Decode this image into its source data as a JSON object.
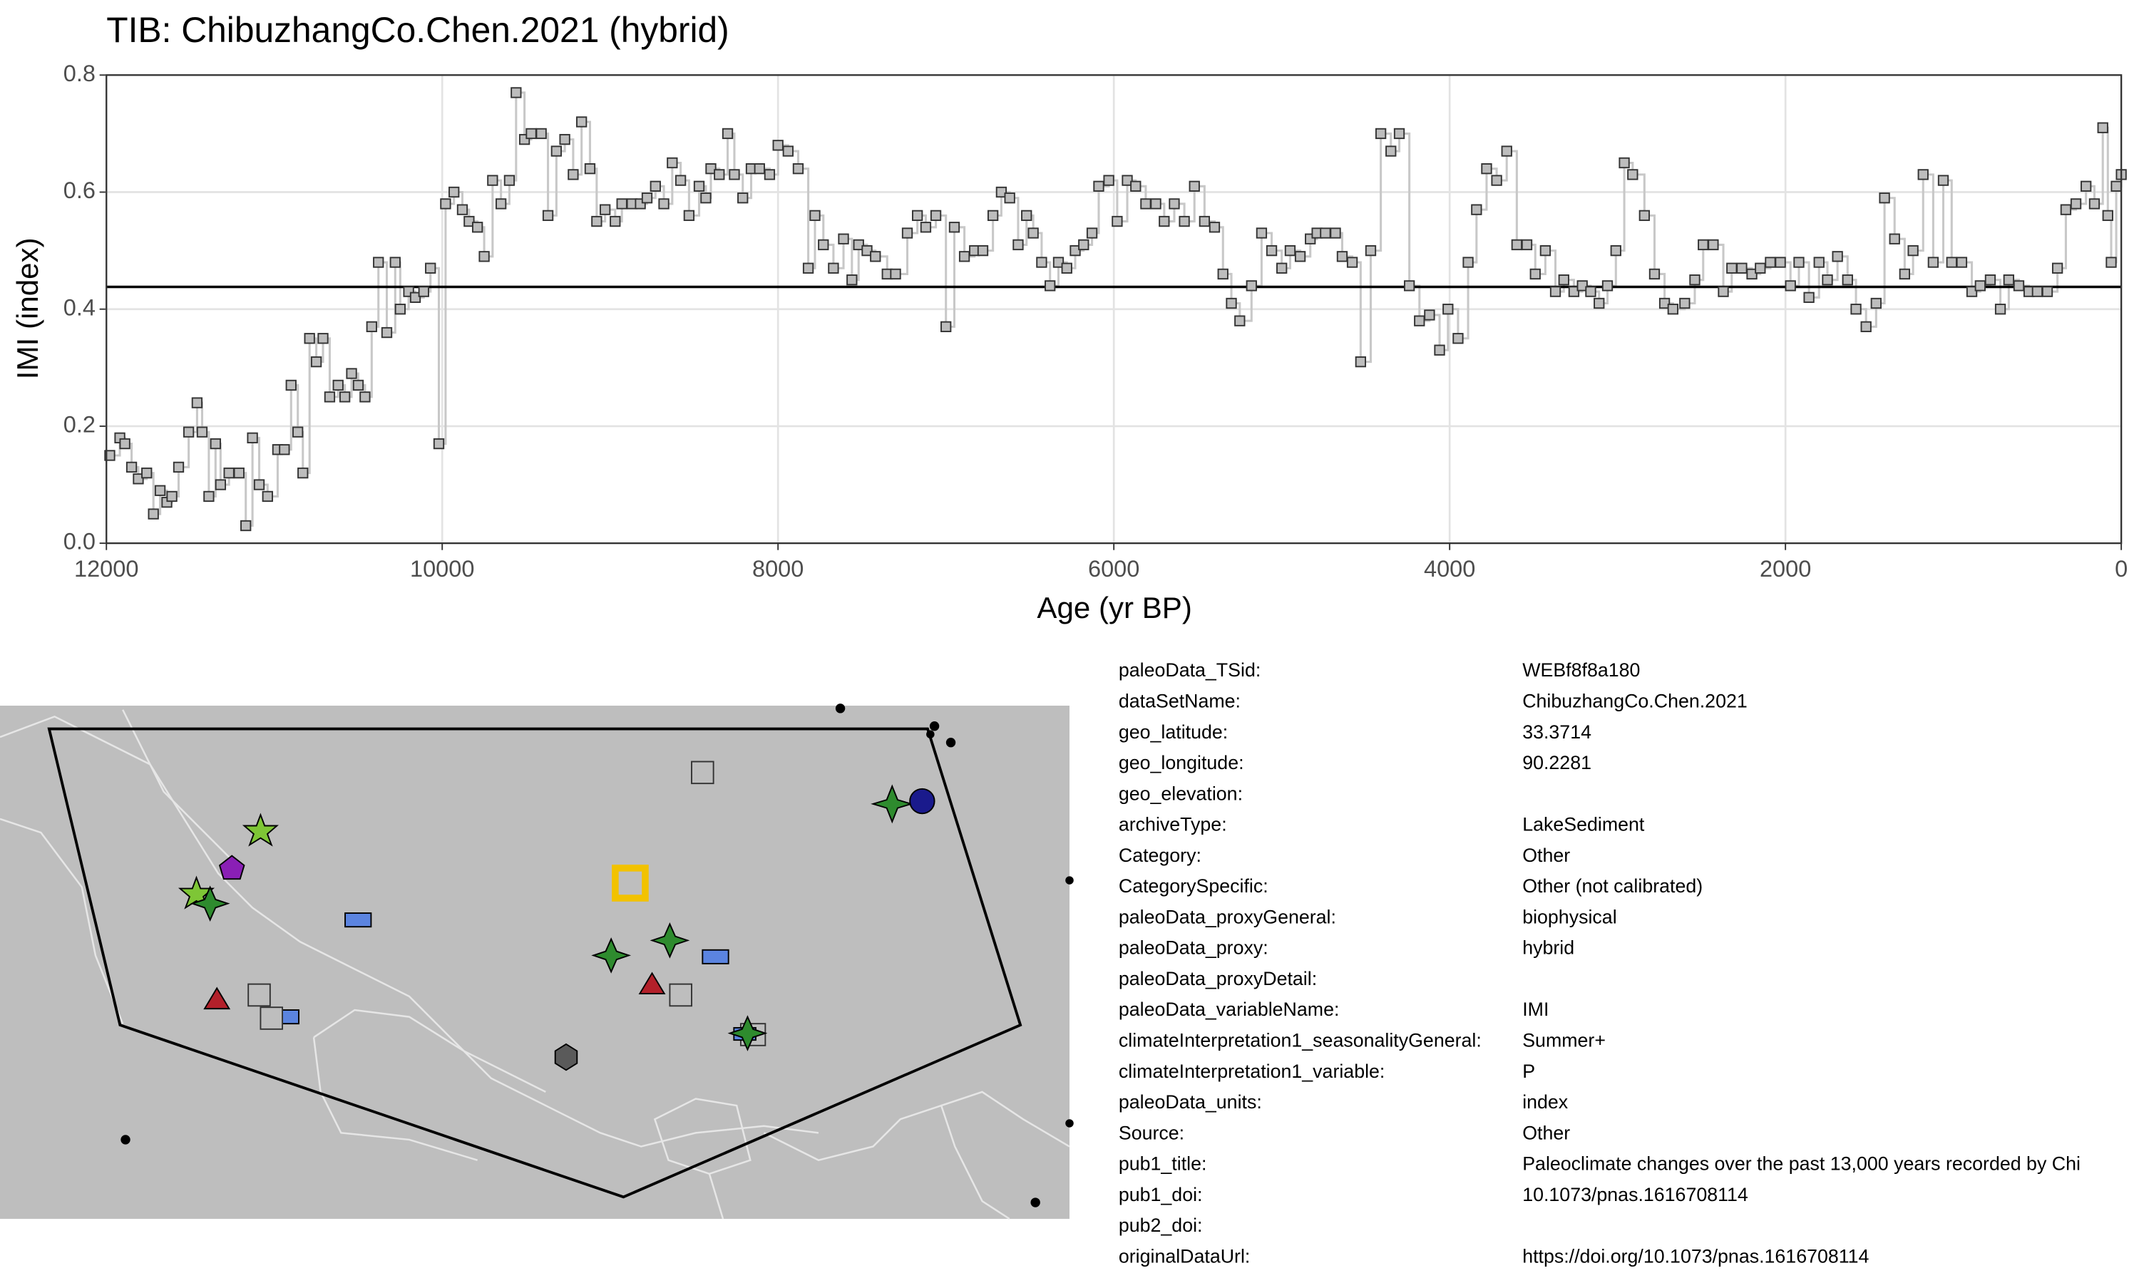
{
  "chart_data": {
    "type": "step",
    "title": "TIB: ChibuzhangCo.Chen.2021 (hybrid)",
    "x_label": "Age (yr BP)",
    "y_label": "IMI (index)",
    "xlim": [
      12000,
      0
    ],
    "xticks": [
      12000,
      10000,
      8000,
      6000,
      4000,
      2000,
      0
    ],
    "ylim": [
      0,
      0.8
    ],
    "yticks": [
      {
        "value": 0,
        "label": "0.0"
      },
      {
        "value": 0.2,
        "label": "0.2"
      },
      {
        "value": 0.4,
        "label": "0.4"
      },
      {
        "value": 0.6,
        "label": "0.6"
      },
      {
        "value": 0.8,
        "label": "0.8"
      }
    ],
    "grid": true,
    "mean_line": 0.438,
    "line_color": "#c8c8c8",
    "marker_color": "#bdbdbd",
    "x": [
      11980,
      11920,
      11890,
      11850,
      11810,
      11760,
      11720,
      11680,
      11640,
      11610,
      11570,
      11510,
      11460,
      11430,
      11390,
      11350,
      11320,
      11270,
      11210,
      11170,
      11130,
      11090,
      11040,
      10980,
      10940,
      10900,
      10860,
      10830,
      10790,
      10750,
      10710,
      10670,
      10620,
      10580,
      10540,
      10500,
      10460,
      10420,
      10380,
      10330,
      10280,
      10250,
      10200,
      10160,
      10110,
      10070,
      10020,
      9980,
      9930,
      9880,
      9840,
      9790,
      9750,
      9700,
      9650,
      9600,
      9560,
      9510,
      9470,
      9410,
      9370,
      9320,
      9270,
      9220,
      9170,
      9120,
      9080,
      9030,
      8970,
      8930,
      8870,
      8820,
      8780,
      8730,
      8680,
      8630,
      8580,
      8530,
      8470,
      8430,
      8400,
      8350,
      8300,
      8260,
      8210,
      8160,
      8110,
      8050,
      8000,
      7940,
      7880,
      7820,
      7780,
      7730,
      7670,
      7610,
      7560,
      7520,
      7470,
      7420,
      7350,
      7300,
      7230,
      7170,
      7120,
      7060,
      7000,
      6950,
      6890,
      6830,
      6780,
      6720,
      6670,
      6620,
      6570,
      6520,
      6480,
      6430,
      6380,
      6330,
      6280,
      6230,
      6180,
      6130,
      6090,
      6030,
      5980,
      5920,
      5870,
      5810,
      5750,
      5700,
      5640,
      5580,
      5520,
      5460,
      5400,
      5350,
      5300,
      5250,
      5180,
      5120,
      5060,
      5000,
      4950,
      4890,
      4830,
      4790,
      4740,
      4680,
      4640,
      4580,
      4530,
      4470,
      4410,
      4350,
      4300,
      4240,
      4180,
      4120,
      4060,
      4010,
      3950,
      3890,
      3840,
      3780,
      3720,
      3660,
      3600,
      3540,
      3490,
      3430,
      3370,
      3320,
      3260,
      3210,
      3160,
      3110,
      3060,
      3010,
      2960,
      2910,
      2840,
      2780,
      2720,
      2670,
      2600,
      2540,
      2490,
      2430,
      2370,
      2320,
      2260,
      2200,
      2150,
      2090,
      2030,
      1970,
      1920,
      1860,
      1800,
      1750,
      1690,
      1630,
      1580,
      1520,
      1460,
      1410,
      1350,
      1290,
      1240,
      1180,
      1120,
      1060,
      1010,
      950,
      890,
      840,
      780,
      720,
      670,
      610,
      550,
      500,
      440,
      380,
      330,
      270,
      210,
      160,
      110,
      80,
      60,
      30,
      0
    ],
    "values": [
      0.15,
      0.18,
      0.17,
      0.13,
      0.11,
      0.12,
      0.05,
      0.09,
      0.07,
      0.08,
      0.13,
      0.19,
      0.24,
      0.19,
      0.08,
      0.17,
      0.1,
      0.12,
      0.12,
      0.03,
      0.18,
      0.1,
      0.08,
      0.16,
      0.16,
      0.27,
      0.19,
      0.12,
      0.35,
      0.31,
      0.35,
      0.25,
      0.27,
      0.25,
      0.29,
      0.27,
      0.25,
      0.37,
      0.48,
      0.36,
      0.48,
      0.4,
      0.43,
      0.42,
      0.43,
      0.47,
      0.17,
      0.58,
      0.6,
      0.57,
      0.55,
      0.54,
      0.49,
      0.62,
      0.58,
      0.62,
      0.77,
      0.69,
      0.7,
      0.7,
      0.56,
      0.67,
      0.69,
      0.63,
      0.72,
      0.64,
      0.55,
      0.57,
      0.55,
      0.58,
      0.58,
      0.58,
      0.59,
      0.61,
      0.58,
      0.65,
      0.62,
      0.56,
      0.61,
      0.59,
      0.64,
      0.63,
      0.7,
      0.63,
      0.59,
      0.64,
      0.64,
      0.63,
      0.68,
      0.67,
      0.64,
      0.47,
      0.56,
      0.51,
      0.47,
      0.52,
      0.45,
      0.51,
      0.5,
      0.49,
      0.46,
      0.46,
      0.53,
      0.56,
      0.54,
      0.56,
      0.37,
      0.54,
      0.49,
      0.5,
      0.5,
      0.56,
      0.6,
      0.59,
      0.51,
      0.56,
      0.53,
      0.48,
      0.44,
      0.48,
      0.47,
      0.5,
      0.51,
      0.53,
      0.61,
      0.62,
      0.55,
      0.62,
      0.61,
      0.58,
      0.58,
      0.55,
      0.58,
      0.55,
      0.61,
      0.55,
      0.54,
      0.46,
      0.41,
      0.38,
      0.44,
      0.53,
      0.5,
      0.47,
      0.5,
      0.49,
      0.52,
      0.53,
      0.53,
      0.53,
      0.49,
      0.48,
      0.31,
      0.5,
      0.7,
      0.67,
      0.7,
      0.44,
      0.38,
      0.39,
      0.33,
      0.4,
      0.35,
      0.48,
      0.57,
      0.64,
      0.62,
      0.67,
      0.51,
      0.51,
      0.46,
      0.5,
      0.43,
      0.45,
      0.43,
      0.44,
      0.43,
      0.41,
      0.44,
      0.5,
      0.65,
      0.63,
      0.56,
      0.46,
      0.41,
      0.4,
      0.41,
      0.45,
      0.51,
      0.51,
      0.43,
      0.47,
      0.47,
      0.46,
      0.47,
      0.48,
      0.48,
      0.44,
      0.48,
      0.42,
      0.48,
      0.45,
      0.49,
      0.45,
      0.4,
      0.37,
      0.41,
      0.59,
      0.52,
      0.46,
      0.5,
      0.63,
      0.48,
      0.62,
      0.48,
      0.48,
      0.43,
      0.44,
      0.45,
      0.4,
      0.45,
      0.44,
      0.43,
      0.43,
      0.43,
      0.47,
      0.57,
      0.58,
      0.61,
      0.58,
      0.71,
      0.56,
      0.48,
      0.61,
      0.63
    ]
  },
  "metadata": {
    "rows": [
      {
        "key": "paleoData_TSid:",
        "value": "WEBf8f8a180"
      },
      {
        "key": "dataSetName:",
        "value": "ChibuzhangCo.Chen.2021"
      },
      {
        "key": "geo_latitude:",
        "value": "33.3714"
      },
      {
        "key": "geo_longitude:",
        "value": "90.2281"
      },
      {
        "key": "geo_elevation:"
      },
      {
        "key": "archiveType:",
        "value": "LakeSediment"
      },
      {
        "key": "Category:",
        "value": "Other"
      },
      {
        "key": "CategorySpecific:",
        "value": "Other (not calibrated)"
      },
      {
        "key": "paleoData_proxyGeneral:",
        "value": "biophysical"
      },
      {
        "key": "paleoData_proxy:",
        "value": "hybrid"
      },
      {
        "key": "paleoData_proxyDetail:"
      },
      {
        "key": "paleoData_variableName:",
        "value": "IMI"
      },
      {
        "key": "climateInterpretation1_seasonalityGeneral:",
        "value": "Summer+"
      },
      {
        "key": "climateInterpretation1_variable:",
        "value": "P"
      },
      {
        "key": "paleoData_units:",
        "value": "index"
      },
      {
        "key": "Source:",
        "value": "Other"
      },
      {
        "key": "pub1_title:",
        "value": "Paleoclimate changes over the past 13,000 years recorded by Chi"
      },
      {
        "key": "pub1_doi:",
        "value": "10.1073/pnas.1616708114"
      },
      {
        "key": "pub2_doi:"
      },
      {
        "key": "originalDataUrl:",
        "value": "https://doi.org/10.1073/pnas.1616708114"
      }
    ]
  }
}
